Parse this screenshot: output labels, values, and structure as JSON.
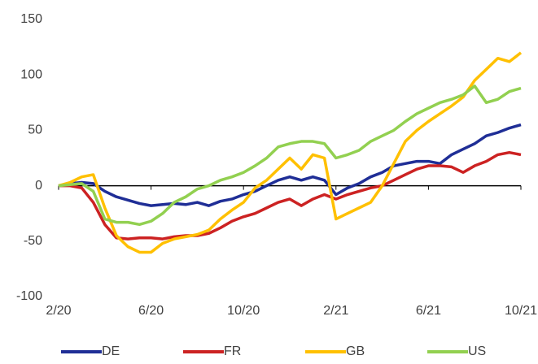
{
  "chart_data": {
    "type": "line",
    "categories": [
      "2/20",
      null,
      null,
      null,
      null,
      null,
      null,
      null,
      "6/20",
      null,
      null,
      null,
      null,
      null,
      null,
      null,
      "10/20",
      null,
      null,
      null,
      null,
      null,
      null,
      null,
      "2/21",
      null,
      null,
      null,
      null,
      null,
      null,
      null,
      "6/21",
      null,
      null,
      null,
      null,
      null,
      null,
      null,
      "10/21"
    ],
    "series": [
      {
        "name": "DE",
        "color": "#1f2e96",
        "values": [
          0,
          2,
          3,
          2,
          -5,
          -10,
          -13,
          -16,
          -18,
          -17,
          -16,
          -17,
          -15,
          -18,
          -14,
          -12,
          -8,
          -5,
          0,
          5,
          8,
          5,
          8,
          5,
          -8,
          -2,
          2,
          8,
          12,
          18,
          20,
          22,
          22,
          20,
          28,
          33,
          38,
          45,
          48,
          52,
          55
        ]
      },
      {
        "name": "FR",
        "color": "#cc2222",
        "values": [
          0,
          0,
          -2,
          -15,
          -35,
          -47,
          -48,
          -47,
          -47,
          -48,
          -46,
          -45,
          -45,
          -43,
          -38,
          -32,
          -28,
          -25,
          -20,
          -15,
          -12,
          -18,
          -12,
          -8,
          -12,
          -8,
          -5,
          -2,
          0,
          5,
          10,
          15,
          18,
          18,
          17,
          12,
          18,
          22,
          28,
          30,
          28
        ]
      },
      {
        "name": "GB",
        "color": "#ffc000",
        "values": [
          0,
          3,
          8,
          10,
          -20,
          -45,
          -55,
          -60,
          -60,
          -52,
          -48,
          -46,
          -44,
          -40,
          -30,
          -22,
          -15,
          -2,
          5,
          15,
          25,
          15,
          28,
          25,
          -30,
          -25,
          -20,
          -15,
          0,
          20,
          40,
          50,
          58,
          65,
          72,
          80,
          95,
          105,
          115,
          112,
          120
        ]
      },
      {
        "name": "US",
        "color": "#92d050",
        "values": [
          0,
          1,
          2,
          -5,
          -30,
          -33,
          -33,
          -35,
          -32,
          -25,
          -15,
          -10,
          -3,
          0,
          5,
          8,
          12,
          18,
          25,
          35,
          38,
          40,
          40,
          38,
          25,
          28,
          32,
          40,
          45,
          50,
          58,
          65,
          70,
          75,
          78,
          82,
          90,
          75,
          78,
          85,
          88
        ]
      }
    ],
    "ylim": [
      -100,
      150
    ],
    "yticks": [
      -100,
      -50,
      0,
      50,
      100,
      150
    ],
    "grid": false,
    "legend": "bottom"
  }
}
